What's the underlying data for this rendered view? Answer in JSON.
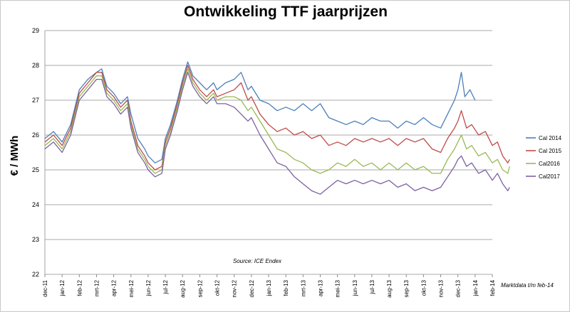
{
  "chart_data": {
    "type": "line",
    "title": "Ontwikkeling TTF jaarprijzen",
    "ylabel": "€ / MWh",
    "xlabel": "",
    "ylim": [
      22,
      29
    ],
    "yticks": [
      22,
      23,
      24,
      25,
      26,
      27,
      28,
      29
    ],
    "grid": true,
    "legend_position": "right",
    "source_note": "Source: ICE Endex",
    "footnote": "Marktdata t/m feb-14",
    "categories": [
      "dec-11",
      "jan-12",
      "feb-12",
      "mrt-12",
      "apr-12",
      "mei-12",
      "jun-12",
      "jul-12",
      "aug-12",
      "sep-12",
      "okt-12",
      "nov-12",
      "dec-12",
      "jan-13",
      "feb-13",
      "mrt-13",
      "apr-13",
      "mei-13",
      "jun-13",
      "jul-13",
      "aug-13",
      "sep-13",
      "okt-13",
      "nov-13",
      "dec-13",
      "jan-14",
      "feb-14"
    ],
    "series": [
      {
        "name": "Cal 2014",
        "color": "#4a7ebb",
        "points": [
          [
            0,
            25.9
          ],
          [
            0.5,
            26.1
          ],
          [
            1.0,
            25.8
          ],
          [
            1.5,
            26.3
          ],
          [
            2,
            27.3
          ],
          [
            2.5,
            27.6
          ],
          [
            3,
            27.8
          ],
          [
            3.3,
            27.9
          ],
          [
            3.6,
            27.4
          ],
          [
            4,
            27.2
          ],
          [
            4.4,
            26.9
          ],
          [
            4.8,
            27.1
          ],
          [
            5,
            26.6
          ],
          [
            5.4,
            25.9
          ],
          [
            5.8,
            25.6
          ],
          [
            6,
            25.4
          ],
          [
            6.4,
            25.2
          ],
          [
            6.8,
            25.3
          ],
          [
            7,
            25.9
          ],
          [
            7.3,
            26.3
          ],
          [
            7.7,
            27.0
          ],
          [
            8,
            27.6
          ],
          [
            8.3,
            28.1
          ],
          [
            8.6,
            27.7
          ],
          [
            9,
            27.5
          ],
          [
            9.4,
            27.3
          ],
          [
            9.8,
            27.5
          ],
          [
            10,
            27.3
          ],
          [
            10.5,
            27.5
          ],
          [
            11,
            27.6
          ],
          [
            11.4,
            27.8
          ],
          [
            11.8,
            27.3
          ],
          [
            12,
            27.4
          ],
          [
            12.5,
            27.0
          ],
          [
            13,
            26.9
          ],
          [
            13.5,
            26.7
          ],
          [
            14,
            26.8
          ],
          [
            14.5,
            26.7
          ],
          [
            15,
            26.9
          ],
          [
            15.5,
            26.7
          ],
          [
            16,
            26.9
          ],
          [
            16.5,
            26.5
          ],
          [
            17,
            26.4
          ],
          [
            17.5,
            26.3
          ],
          [
            18,
            26.4
          ],
          [
            18.5,
            26.3
          ],
          [
            19,
            26.5
          ],
          [
            19.5,
            26.4
          ],
          [
            20,
            26.4
          ],
          [
            20.5,
            26.2
          ],
          [
            21,
            26.4
          ],
          [
            21.5,
            26.3
          ],
          [
            22,
            26.5
          ],
          [
            22.5,
            26.3
          ],
          [
            23,
            26.2
          ],
          [
            23.4,
            26.6
          ],
          [
            23.8,
            27.0
          ],
          [
            24.0,
            27.3
          ],
          [
            24.2,
            27.8
          ],
          [
            24.4,
            27.1
          ],
          [
            24.7,
            27.3
          ],
          [
            25.0,
            27.0
          ]
        ]
      },
      {
        "name": "Cal 2015",
        "color": "#be4b48",
        "points": [
          [
            0,
            25.8
          ],
          [
            0.5,
            26.0
          ],
          [
            1.0,
            25.7
          ],
          [
            1.5,
            26.2
          ],
          [
            2,
            27.2
          ],
          [
            2.5,
            27.5
          ],
          [
            3,
            27.8
          ],
          [
            3.3,
            27.8
          ],
          [
            3.6,
            27.3
          ],
          [
            4,
            27.1
          ],
          [
            4.4,
            26.8
          ],
          [
            4.8,
            27.0
          ],
          [
            5,
            26.4
          ],
          [
            5.4,
            25.7
          ],
          [
            5.8,
            25.4
          ],
          [
            6,
            25.2
          ],
          [
            6.4,
            25.0
          ],
          [
            6.8,
            25.1
          ],
          [
            7,
            25.8
          ],
          [
            7.3,
            26.2
          ],
          [
            7.7,
            26.9
          ],
          [
            8,
            27.5
          ],
          [
            8.3,
            28.0
          ],
          [
            8.6,
            27.6
          ],
          [
            9,
            27.3
          ],
          [
            9.4,
            27.1
          ],
          [
            9.8,
            27.3
          ],
          [
            10,
            27.1
          ],
          [
            10.5,
            27.2
          ],
          [
            11,
            27.3
          ],
          [
            11.4,
            27.5
          ],
          [
            11.8,
            27.0
          ],
          [
            12,
            27.1
          ],
          [
            12.5,
            26.6
          ],
          [
            13,
            26.3
          ],
          [
            13.5,
            26.1
          ],
          [
            14,
            26.2
          ],
          [
            14.5,
            26.0
          ],
          [
            15,
            26.1
          ],
          [
            15.5,
            25.9
          ],
          [
            16,
            26.0
          ],
          [
            16.5,
            25.7
          ],
          [
            17,
            25.8
          ],
          [
            17.5,
            25.7
          ],
          [
            18,
            25.9
          ],
          [
            18.5,
            25.8
          ],
          [
            19,
            25.9
          ],
          [
            19.5,
            25.8
          ],
          [
            20,
            25.9
          ],
          [
            20.5,
            25.7
          ],
          [
            21,
            25.9
          ],
          [
            21.5,
            25.8
          ],
          [
            22,
            25.9
          ],
          [
            22.5,
            25.6
          ],
          [
            23,
            25.5
          ],
          [
            23.4,
            25.9
          ],
          [
            23.8,
            26.2
          ],
          [
            24.0,
            26.4
          ],
          [
            24.2,
            26.7
          ],
          [
            24.5,
            26.2
          ],
          [
            24.8,
            26.3
          ],
          [
            25.2,
            26.0
          ],
          [
            25.6,
            26.1
          ],
          [
            26.0,
            25.7
          ],
          [
            26.3,
            25.8
          ],
          [
            26.6,
            25.4
          ],
          [
            26.9,
            25.2
          ],
          [
            27.0,
            25.3
          ]
        ]
      },
      {
        "name": "Cal2016",
        "color": "#98b954",
        "points": [
          [
            0,
            25.7
          ],
          [
            0.5,
            25.9
          ],
          [
            1.0,
            25.6
          ],
          [
            1.5,
            26.1
          ],
          [
            2,
            27.1
          ],
          [
            2.5,
            27.4
          ],
          [
            3,
            27.7
          ],
          [
            3.3,
            27.7
          ],
          [
            3.6,
            27.2
          ],
          [
            4,
            27.0
          ],
          [
            4.4,
            26.7
          ],
          [
            4.8,
            26.9
          ],
          [
            5,
            26.3
          ],
          [
            5.4,
            25.6
          ],
          [
            5.8,
            25.3
          ],
          [
            6,
            25.1
          ],
          [
            6.4,
            24.9
          ],
          [
            6.8,
            25.0
          ],
          [
            7,
            25.7
          ],
          [
            7.3,
            26.1
          ],
          [
            7.7,
            26.8
          ],
          [
            8,
            27.4
          ],
          [
            8.3,
            27.9
          ],
          [
            8.6,
            27.5
          ],
          [
            9,
            27.2
          ],
          [
            9.4,
            27.0
          ],
          [
            9.8,
            27.2
          ],
          [
            10,
            27.0
          ],
          [
            10.5,
            27.1
          ],
          [
            11,
            27.1
          ],
          [
            11.4,
            27.0
          ],
          [
            11.8,
            26.7
          ],
          [
            12,
            26.8
          ],
          [
            12.5,
            26.4
          ],
          [
            13,
            26.0
          ],
          [
            13.5,
            25.6
          ],
          [
            14,
            25.5
          ],
          [
            14.5,
            25.3
          ],
          [
            15,
            25.2
          ],
          [
            15.5,
            25.0
          ],
          [
            16,
            24.9
          ],
          [
            16.5,
            25.0
          ],
          [
            17,
            25.2
          ],
          [
            17.5,
            25.1
          ],
          [
            18,
            25.3
          ],
          [
            18.5,
            25.1
          ],
          [
            19,
            25.2
          ],
          [
            19.5,
            25.0
          ],
          [
            20,
            25.2
          ],
          [
            20.5,
            25.0
          ],
          [
            21,
            25.2
          ],
          [
            21.5,
            25.0
          ],
          [
            22,
            25.1
          ],
          [
            22.5,
            24.9
          ],
          [
            23,
            24.9
          ],
          [
            23.4,
            25.3
          ],
          [
            23.8,
            25.6
          ],
          [
            24.0,
            25.8
          ],
          [
            24.2,
            26.0
          ],
          [
            24.5,
            25.6
          ],
          [
            24.8,
            25.7
          ],
          [
            25.2,
            25.4
          ],
          [
            25.6,
            25.5
          ],
          [
            26.0,
            25.2
          ],
          [
            26.3,
            25.3
          ],
          [
            26.6,
            25.0
          ],
          [
            26.9,
            24.9
          ],
          [
            27.0,
            25.1
          ]
        ]
      },
      {
        "name": "Cal2017",
        "color": "#7d60a0",
        "points": [
          [
            0,
            25.6
          ],
          [
            0.5,
            25.8
          ],
          [
            1.0,
            25.5
          ],
          [
            1.5,
            26.0
          ],
          [
            2,
            27.0
          ],
          [
            2.5,
            27.3
          ],
          [
            3,
            27.6
          ],
          [
            3.3,
            27.6
          ],
          [
            3.6,
            27.1
          ],
          [
            4,
            26.9
          ],
          [
            4.4,
            26.6
          ],
          [
            4.8,
            26.8
          ],
          [
            5,
            26.2
          ],
          [
            5.4,
            25.5
          ],
          [
            5.8,
            25.2
          ],
          [
            6,
            25.0
          ],
          [
            6.4,
            24.8
          ],
          [
            6.8,
            24.9
          ],
          [
            7,
            25.6
          ],
          [
            7.3,
            26.0
          ],
          [
            7.7,
            26.7
          ],
          [
            8,
            27.3
          ],
          [
            8.3,
            27.8
          ],
          [
            8.6,
            27.4
          ],
          [
            9,
            27.1
          ],
          [
            9.4,
            26.9
          ],
          [
            9.8,
            27.1
          ],
          [
            10,
            26.9
          ],
          [
            10.5,
            26.9
          ],
          [
            11,
            26.8
          ],
          [
            11.4,
            26.6
          ],
          [
            11.8,
            26.4
          ],
          [
            12,
            26.5
          ],
          [
            12.5,
            26.0
          ],
          [
            13,
            25.6
          ],
          [
            13.5,
            25.2
          ],
          [
            14,
            25.1
          ],
          [
            14.5,
            24.8
          ],
          [
            15,
            24.6
          ],
          [
            15.5,
            24.4
          ],
          [
            16,
            24.3
          ],
          [
            16.5,
            24.5
          ],
          [
            17,
            24.7
          ],
          [
            17.5,
            24.6
          ],
          [
            18,
            24.7
          ],
          [
            18.5,
            24.6
          ],
          [
            19,
            24.7
          ],
          [
            19.5,
            24.6
          ],
          [
            20,
            24.7
          ],
          [
            20.5,
            24.5
          ],
          [
            21,
            24.6
          ],
          [
            21.5,
            24.4
          ],
          [
            22,
            24.5
          ],
          [
            22.5,
            24.4
          ],
          [
            23,
            24.5
          ],
          [
            23.4,
            24.8
          ],
          [
            23.8,
            25.1
          ],
          [
            24.0,
            25.3
          ],
          [
            24.2,
            25.4
          ],
          [
            24.5,
            25.1
          ],
          [
            24.8,
            25.2
          ],
          [
            25.2,
            24.9
          ],
          [
            25.6,
            25.0
          ],
          [
            26.0,
            24.7
          ],
          [
            26.3,
            24.9
          ],
          [
            26.6,
            24.6
          ],
          [
            26.9,
            24.4
          ],
          [
            27.0,
            24.5
          ]
        ]
      }
    ]
  }
}
